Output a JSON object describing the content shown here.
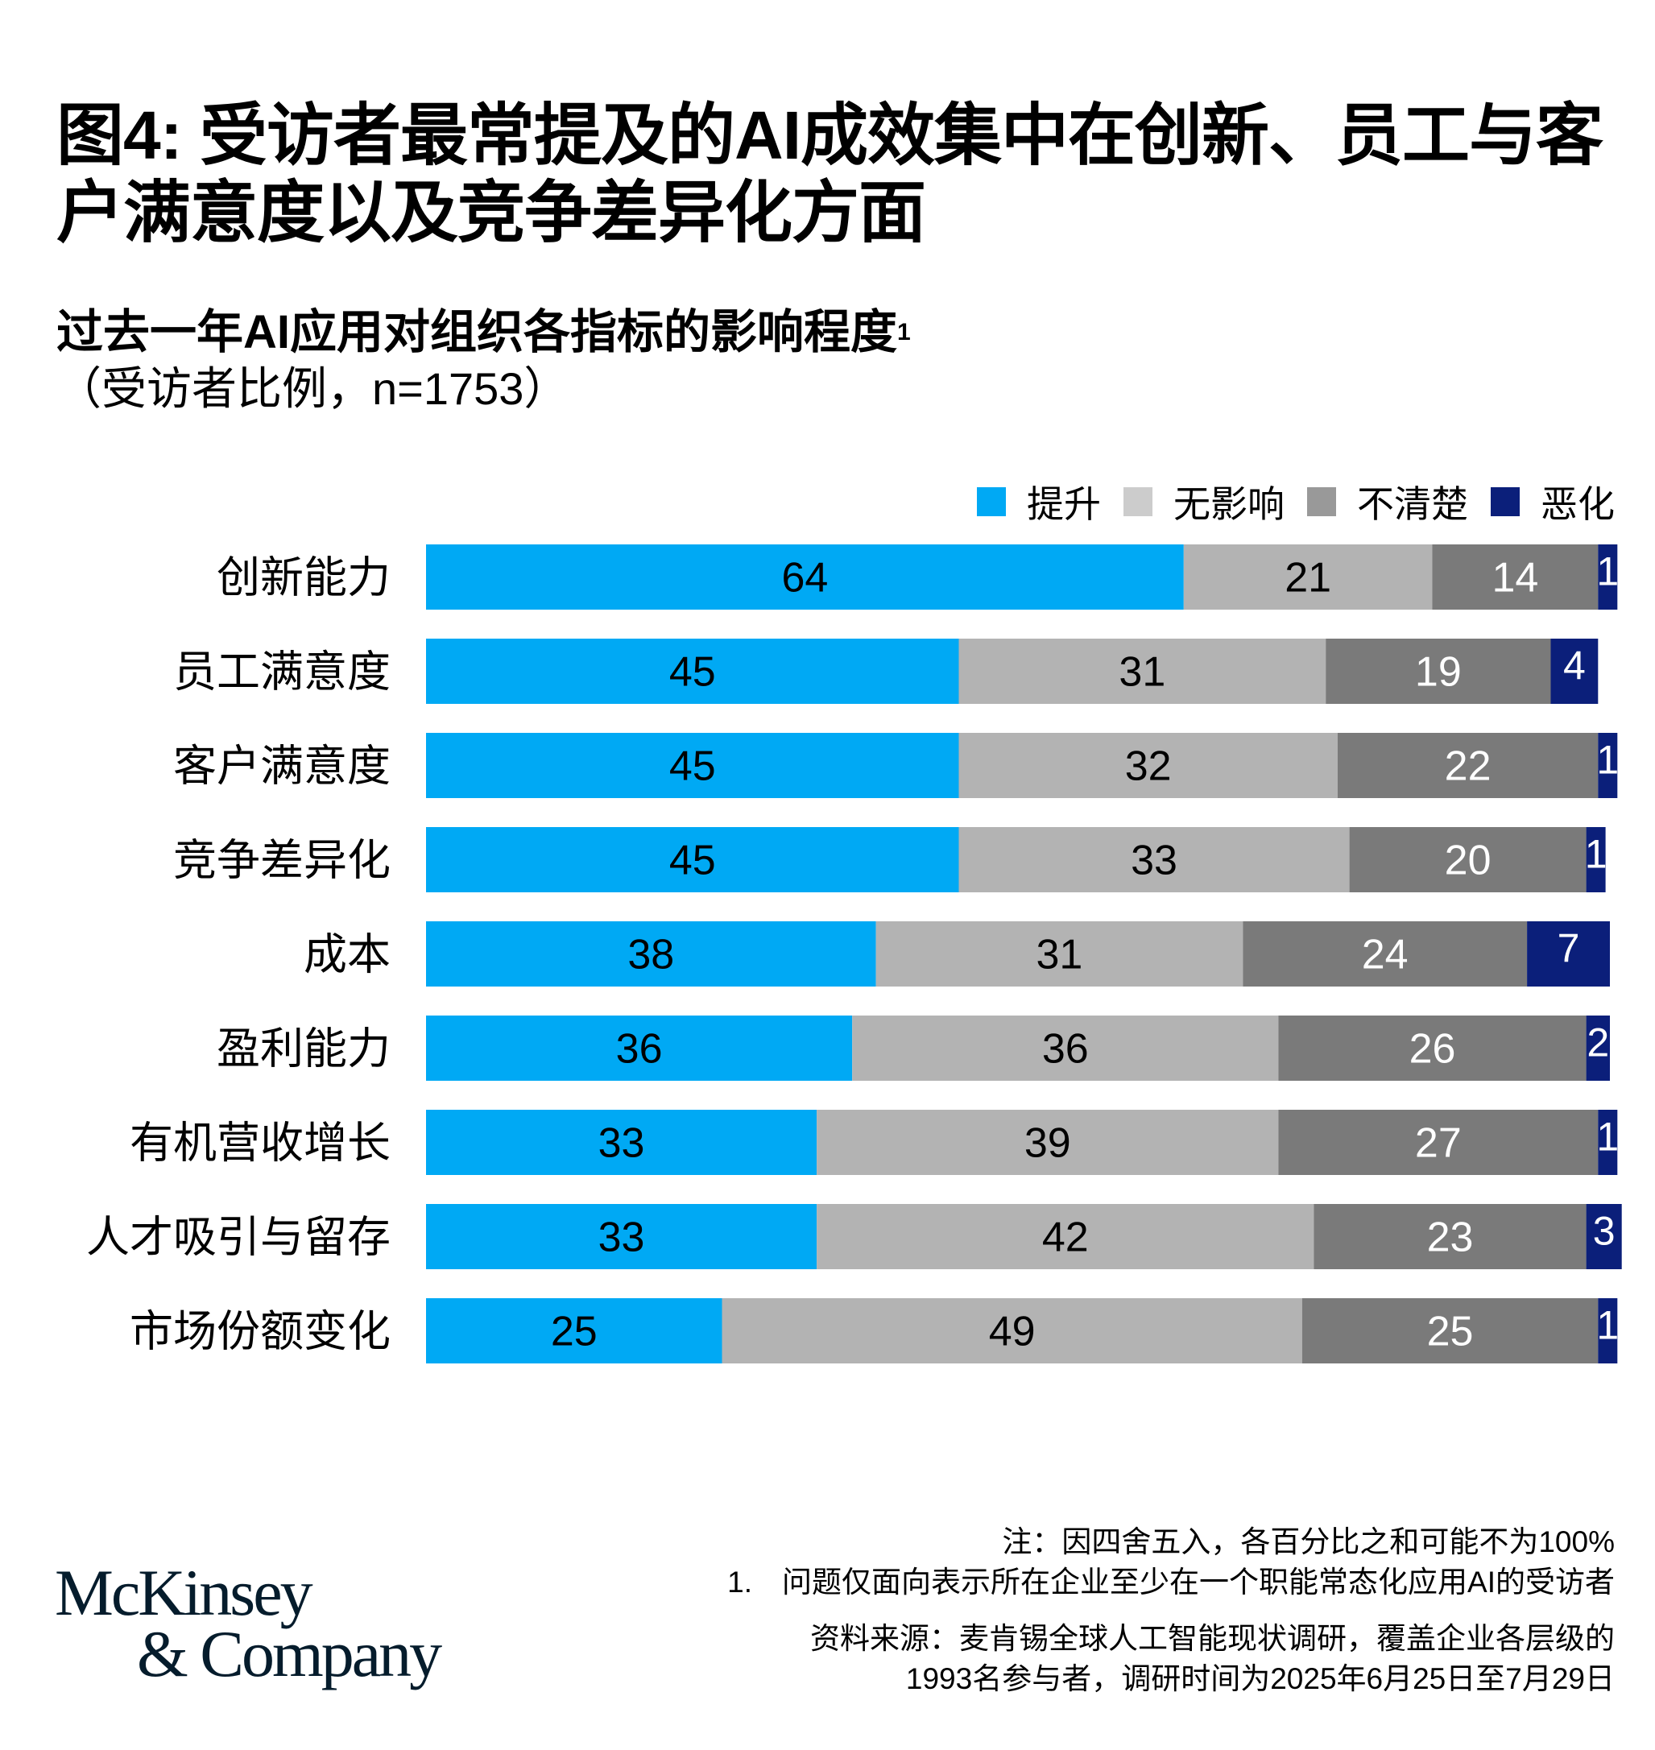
{
  "title": "图4: 受访者最常提及的AI成效集中在创新、员工与客户满意度以及竞争差异化方面",
  "chart_data": {
    "type": "bar",
    "orientation": "horizontal",
    "stacked": true,
    "title": "过去一年AI应用对组织各指标的影响程度",
    "title_footnote": "1",
    "subtitle": "（受访者比例，n=1753）",
    "legend_position": "top-right",
    "categories": [
      "创新能力",
      "员工满意度",
      "客户满意度",
      "竞争差异化",
      "成本",
      "盈利能力",
      "有机营收增长",
      "人才吸引与留存",
      "市场份额变化"
    ],
    "series": [
      {
        "name": "提升",
        "color": "#00A9F4",
        "label_color": "#000000",
        "values": [
          64,
          45,
          45,
          45,
          38,
          36,
          33,
          33,
          25
        ]
      },
      {
        "name": "无影响",
        "color": "#B3B3B3",
        "legend_color": "#CCCCCC",
        "label_color": "#000000",
        "values": [
          21,
          31,
          32,
          33,
          31,
          36,
          39,
          42,
          49
        ]
      },
      {
        "name": "不清楚",
        "color": "#7A7A7A",
        "legend_color": "#999999",
        "label_color": "#FFFFFF",
        "values": [
          14,
          19,
          22,
          20,
          24,
          26,
          27,
          23,
          25
        ]
      },
      {
        "name": "恶化",
        "color": "#0B1F7A",
        "label_color": "#FFFFFF",
        "values": [
          1,
          4,
          1,
          1,
          7,
          2,
          1,
          3,
          1
        ]
      }
    ],
    "grid": false
  },
  "footer": {
    "note": "注：因四舍五入，各百分比之和可能不为100%",
    "footnote_1": "1.　问题仅面向表示所在企业至少在一个职能常态化应用AI的受访者",
    "source_line1": "资料来源：麦肯锡全球人工智能现状调研，覆盖企业各层级的",
    "source_line2": "1993名参与者，调研时间为2025年6月25日至7月29日"
  },
  "logo": {
    "line1": "McKinsey",
    "line2": "& Company"
  }
}
